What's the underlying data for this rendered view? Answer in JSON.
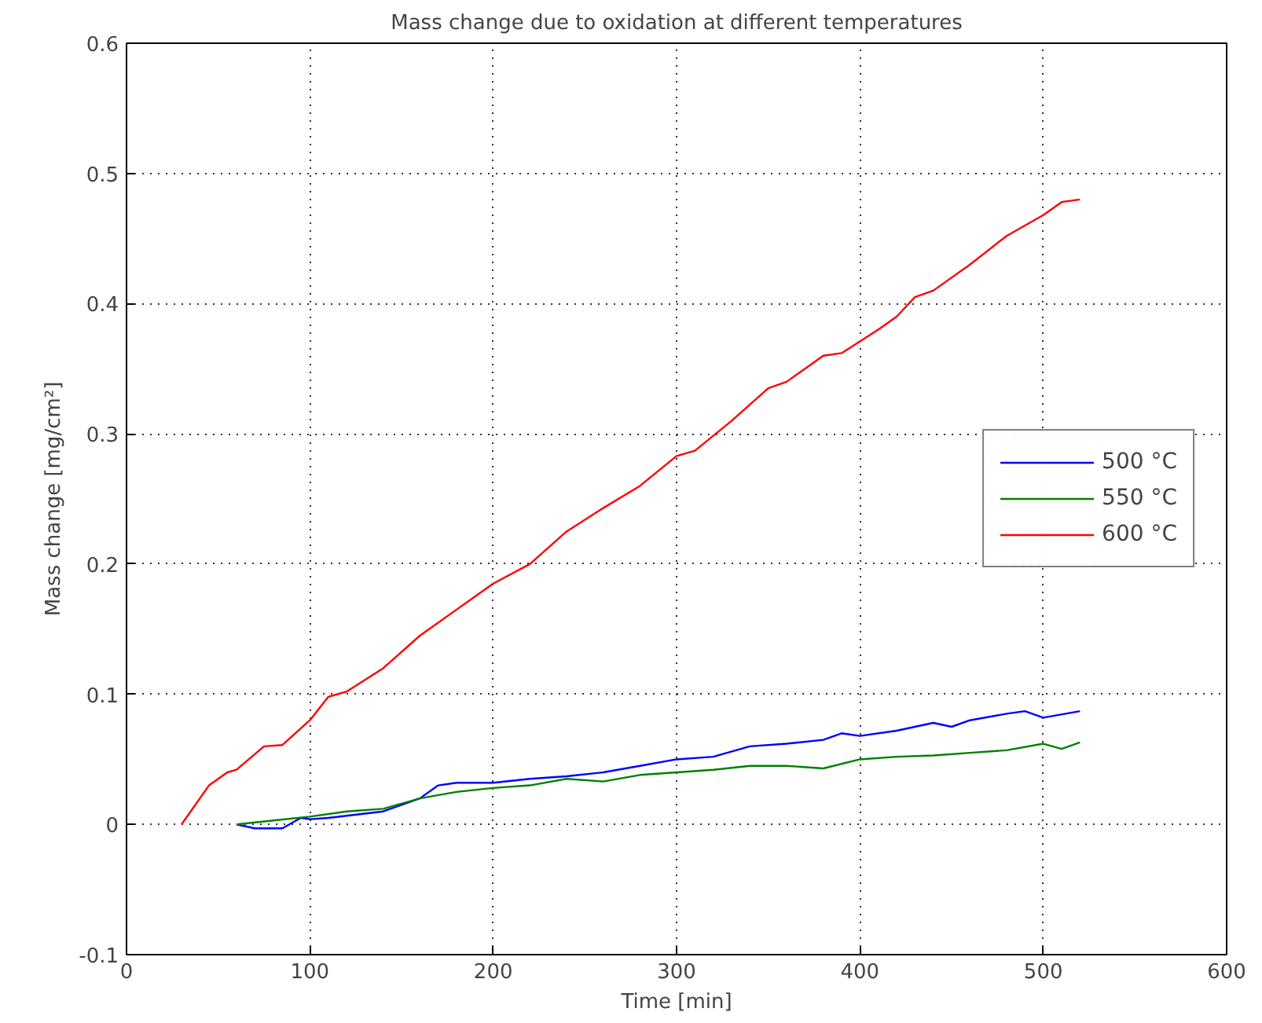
{
  "chart_data": {
    "type": "line",
    "title": "Mass change due to oxidation at different temperatures",
    "xlabel": "Time [min]",
    "ylabel": "Mass change [mg/cm²]",
    "xlim": [
      0,
      600
    ],
    "ylim": [
      -0.1,
      0.6
    ],
    "xticks": [
      0,
      100,
      200,
      300,
      400,
      500,
      600
    ],
    "yticks": [
      -0.1,
      0,
      0.1,
      0.2,
      0.3,
      0.4,
      0.5,
      0.6
    ],
    "grid": true,
    "legend": "right",
    "line_style": "solid",
    "marker": "none",
    "series": [
      {
        "name": "500 °C",
        "color": "#0000ff",
        "x": [
          60,
          70,
          85,
          95,
          100,
          110,
          140,
          160,
          170,
          180,
          200,
          220,
          240,
          260,
          280,
          300,
          320,
          340,
          360,
          380,
          390,
          400,
          420,
          440,
          450,
          460,
          480,
          490,
          500,
          520
        ],
        "values": [
          0,
          -0.003,
          -0.003,
          0.005,
          0.004,
          0.005,
          0.01,
          0.02,
          0.03,
          0.032,
          0.032,
          0.035,
          0.037,
          0.04,
          0.045,
          0.05,
          0.052,
          0.06,
          0.062,
          0.065,
          0.07,
          0.068,
          0.072,
          0.078,
          0.075,
          0.08,
          0.085,
          0.087,
          0.082,
          0.087
        ]
      },
      {
        "name": "550 °C",
        "color": "#008000",
        "x": [
          60,
          80,
          100,
          120,
          140,
          160,
          180,
          200,
          220,
          240,
          260,
          280,
          300,
          320,
          340,
          360,
          380,
          400,
          420,
          440,
          460,
          480,
          500,
          510,
          520
        ],
        "values": [
          0,
          0.003,
          0.006,
          0.01,
          0.012,
          0.02,
          0.025,
          0.028,
          0.03,
          0.035,
          0.033,
          0.038,
          0.04,
          0.042,
          0.045,
          0.045,
          0.043,
          0.05,
          0.052,
          0.053,
          0.055,
          0.057,
          0.062,
          0.058,
          0.063
        ]
      },
      {
        "name": "600 °C",
        "color": "#ff0000",
        "x": [
          30,
          45,
          55,
          60,
          75,
          85,
          100,
          110,
          120,
          140,
          160,
          180,
          200,
          220,
          240,
          260,
          280,
          300,
          310,
          330,
          350,
          360,
          380,
          390,
          410,
          420,
          430,
          440,
          460,
          480,
          500,
          510,
          520
        ],
        "values": [
          0,
          0.03,
          0.04,
          0.042,
          0.06,
          0.061,
          0.08,
          0.098,
          0.102,
          0.12,
          0.145,
          0.165,
          0.185,
          0.2,
          0.225,
          0.243,
          0.26,
          0.283,
          0.287,
          0.31,
          0.335,
          0.34,
          0.36,
          0.362,
          0.38,
          0.39,
          0.405,
          0.41,
          0.43,
          0.452,
          0.468,
          0.478,
          0.48
        ]
      }
    ]
  }
}
